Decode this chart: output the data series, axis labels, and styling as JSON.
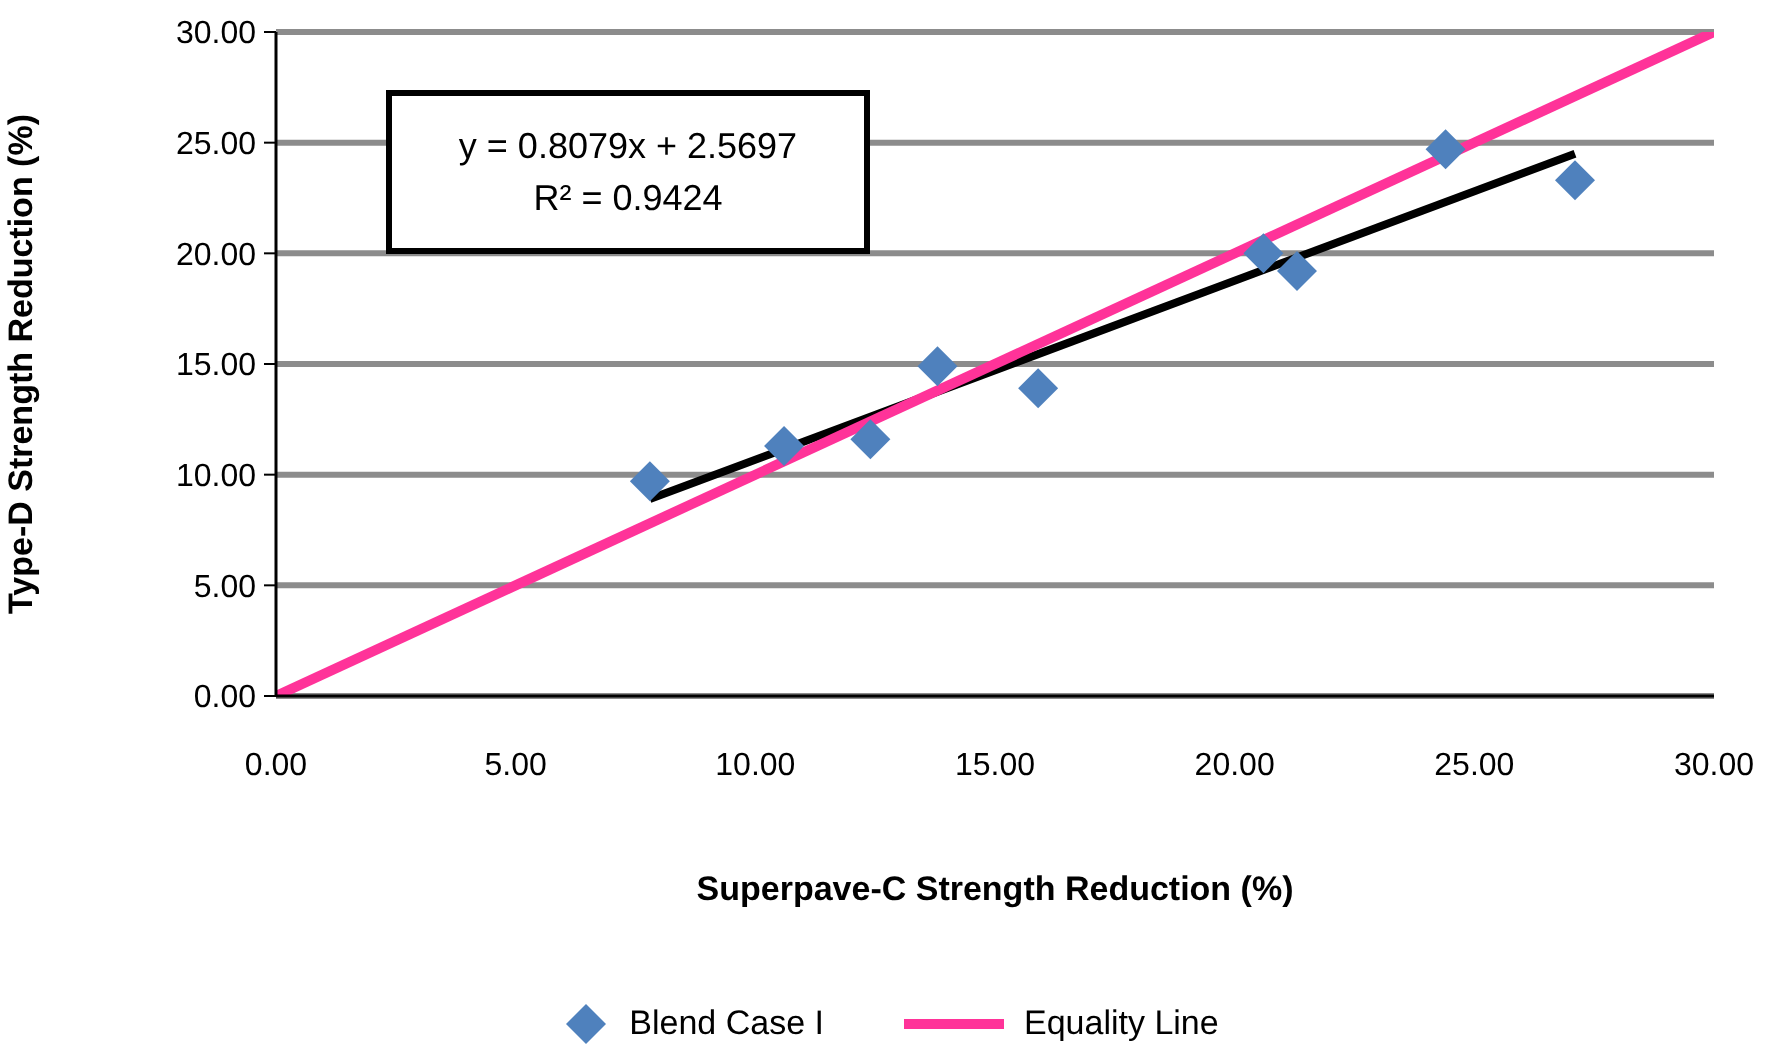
{
  "chart_data": {
    "type": "scatter",
    "xlabel": "Superpave-C Strength Reduction (%)",
    "ylabel": "Type-D Strength Reduction (%)",
    "xlim": [
      0,
      30
    ],
    "ylim": [
      0,
      30
    ],
    "xticks": [
      {
        "value": 0,
        "label": "0.00"
      },
      {
        "value": 5,
        "label": "5.00"
      },
      {
        "value": 10,
        "label": "10.00"
      },
      {
        "value": 15,
        "label": "15.00"
      },
      {
        "value": 20,
        "label": "20.00"
      },
      {
        "value": 25,
        "label": "25.00"
      },
      {
        "value": 30,
        "label": "30.00"
      }
    ],
    "yticks": [
      {
        "value": 0,
        "label": "0.00"
      },
      {
        "value": 5,
        "label": "5.00"
      },
      {
        "value": 10,
        "label": "10.00"
      },
      {
        "value": 15,
        "label": "15.00"
      },
      {
        "value": 20,
        "label": "20.00"
      },
      {
        "value": 25,
        "label": "25.00"
      },
      {
        "value": 30,
        "label": "30.00"
      }
    ],
    "grid": "y",
    "legend": "bottom",
    "annotations": [
      "y = 0.8079x + 2.5697",
      "R² = 0.9424"
    ],
    "series": [
      {
        "name": "Blend Case I",
        "color": "#4f81bd",
        "marker": "diamond",
        "x": [
          7.8,
          10.6,
          12.4,
          13.8,
          15.9,
          20.6,
          21.3,
          24.4,
          27.1
        ],
        "values": [
          9.7,
          11.3,
          11.6,
          14.9,
          13.9,
          20.0,
          19.2,
          24.7,
          23.3
        ]
      },
      {
        "type": "line",
        "color": "#000000",
        "marker": "none",
        "x": [
          7.8,
          27.1
        ],
        "values": [
          8.9,
          24.5
        ]
      },
      {
        "name": "Equality Line",
        "type": "line",
        "color": "#ff3399",
        "marker": "none",
        "x": [
          0,
          30
        ],
        "values": [
          0,
          30
        ]
      }
    ]
  }
}
